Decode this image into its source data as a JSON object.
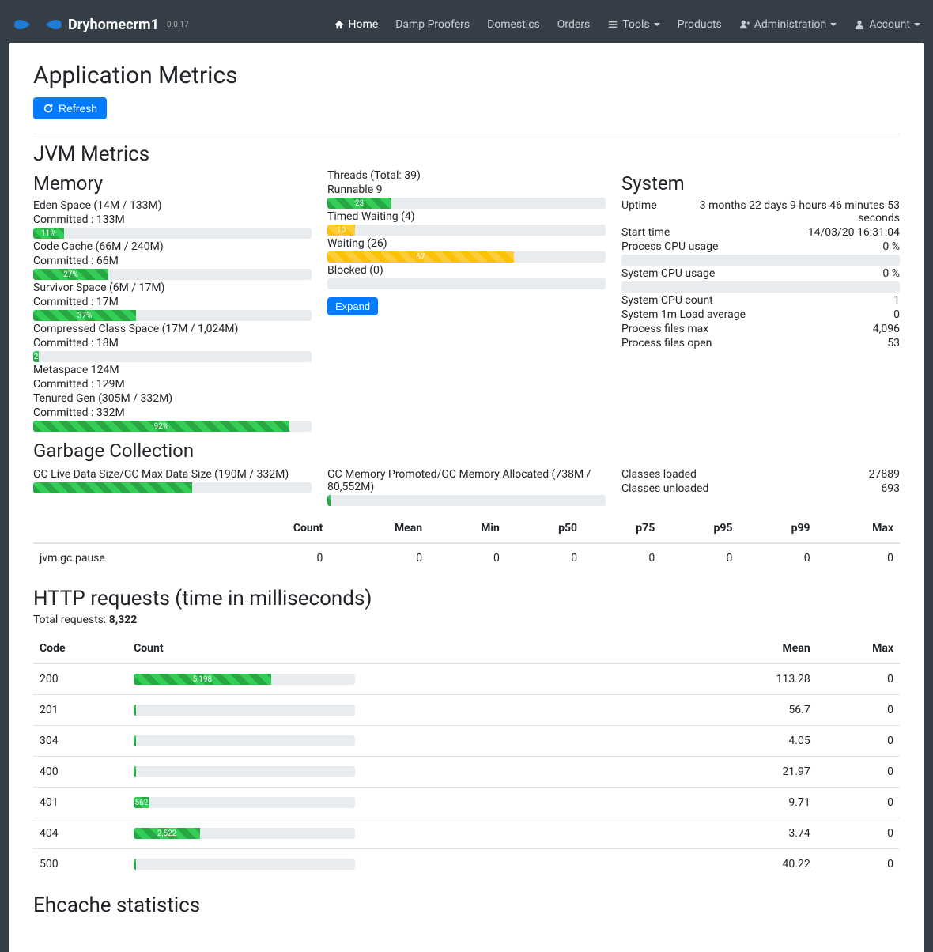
{
  "brand": {
    "name": "Dryhomecrm1",
    "version": "0.0.17"
  },
  "nav": {
    "home": "Home",
    "damp": "Damp Proofers",
    "domestics": "Domestics",
    "orders": "Orders",
    "tools": "Tools",
    "products": "Products",
    "admin": "Administration",
    "account": "Account"
  },
  "page": {
    "title": "Application Metrics",
    "refresh": "Refresh",
    "jvm_title": "JVM Metrics",
    "memory_title": "Memory",
    "gc_title": "Garbage Collection",
    "http_title": "HTTP requests (time in milliseconds)",
    "ehcache_title": "Ehcache statistics",
    "expand": "Expand"
  },
  "memory": [
    {
      "label": "Eden Space (14M / 133M)",
      "committed": "Committed : 133M",
      "pct": 11,
      "pct_label": "11%",
      "color": "green"
    },
    {
      "label": "Code Cache (66M / 240M)",
      "committed": "Committed : 66M",
      "pct": 27,
      "pct_label": "27%",
      "color": "green"
    },
    {
      "label": "Survivor Space (6M / 17M)",
      "committed": "Committed : 17M",
      "pct": 37,
      "pct_label": "37%",
      "color": "green"
    },
    {
      "label": "Compressed Class Space (17M / 1,024M)",
      "committed": "Committed : 18M",
      "pct": 2,
      "pct_label": "2",
      "color": "green"
    },
    {
      "label": "Metaspace 124M",
      "committed": "Committed : 129M",
      "pct": 0,
      "pct_label": "",
      "color": "green",
      "hide_bar": true
    },
    {
      "label": "Tenured Gen (305M / 332M)",
      "committed": "Committed : 332M",
      "pct": 92,
      "pct_label": "92%",
      "color": "green"
    }
  ],
  "threads": {
    "header": "Threads (Total: 39)",
    "items": [
      {
        "label": "Runnable 9",
        "pct": 23,
        "pct_label": "23",
        "color": "green"
      },
      {
        "label": "Timed Waiting (4)",
        "pct": 10,
        "pct_label": "10",
        "color": "yellow"
      },
      {
        "label": "Waiting (26)",
        "pct": 67,
        "pct_label": "67",
        "color": "yellow"
      },
      {
        "label": "Blocked (0)",
        "pct": 0,
        "pct_label": "",
        "color": "green"
      }
    ]
  },
  "system": {
    "title": "System",
    "rows": [
      {
        "k": "Uptime",
        "v": "3 months 22 days 9 hours 46 minutes 53 seconds"
      },
      {
        "k": "Start time",
        "v": "14/03/20 16:31:04"
      },
      {
        "k": "Process CPU usage",
        "v": "0 %",
        "bar_pct": 0
      },
      {
        "k": "System CPU usage",
        "v": "0 %",
        "bar_pct": 0
      },
      {
        "k": "System CPU count",
        "v": "1"
      },
      {
        "k": "System 1m Load average",
        "v": "0"
      },
      {
        "k": "Process files max",
        "v": "4,096"
      },
      {
        "k": "Process files open",
        "v": "53"
      }
    ]
  },
  "gc": {
    "left": {
      "label": "GC Live Data Size/GC Max Data Size (190M / 332M)",
      "pct": 57,
      "color": "green"
    },
    "mid": {
      "label": "GC Memory Promoted/GC Memory Allocated (738M / 80,552M)",
      "pct": 1,
      "color": "green"
    },
    "classes_loaded_label": "Classes loaded",
    "classes_loaded": "27889",
    "classes_unloaded_label": "Classes unloaded",
    "classes_unloaded": "693",
    "table": {
      "headers": [
        "",
        "Count",
        "Mean",
        "Min",
        "p50",
        "p75",
        "p95",
        "p99",
        "Max"
      ],
      "row_name": "jvm.gc.pause",
      "row": [
        "0",
        "0",
        "0",
        "0",
        "0",
        "0",
        "0",
        "0"
      ]
    }
  },
  "http": {
    "total_label": "Total requests: ",
    "total": "8,322",
    "headers": [
      "Code",
      "Count",
      "Mean",
      "Max"
    ],
    "rows": [
      {
        "code": "200",
        "count_label": "5,198",
        "pct": 62,
        "mean": "113.28",
        "max": "0"
      },
      {
        "code": "201",
        "count_label": "",
        "pct": 1,
        "mean": "56.7",
        "max": "0"
      },
      {
        "code": "304",
        "count_label": "",
        "pct": 1,
        "mean": "4.05",
        "max": "0"
      },
      {
        "code": "400",
        "count_label": "",
        "pct": 1,
        "mean": "21.97",
        "max": "0"
      },
      {
        "code": "401",
        "count_label": "562",
        "pct": 7,
        "mean": "9.71",
        "max": "0"
      },
      {
        "code": "404",
        "count_label": "2,522",
        "pct": 30,
        "mean": "3.74",
        "max": "0"
      },
      {
        "code": "500",
        "count_label": "",
        "pct": 1,
        "mean": "40.22",
        "max": "0"
      }
    ]
  },
  "colors": {
    "green": "#28a745",
    "yellow": "#ffc107",
    "blue": "#007bff",
    "track": "#e9ecef"
  }
}
